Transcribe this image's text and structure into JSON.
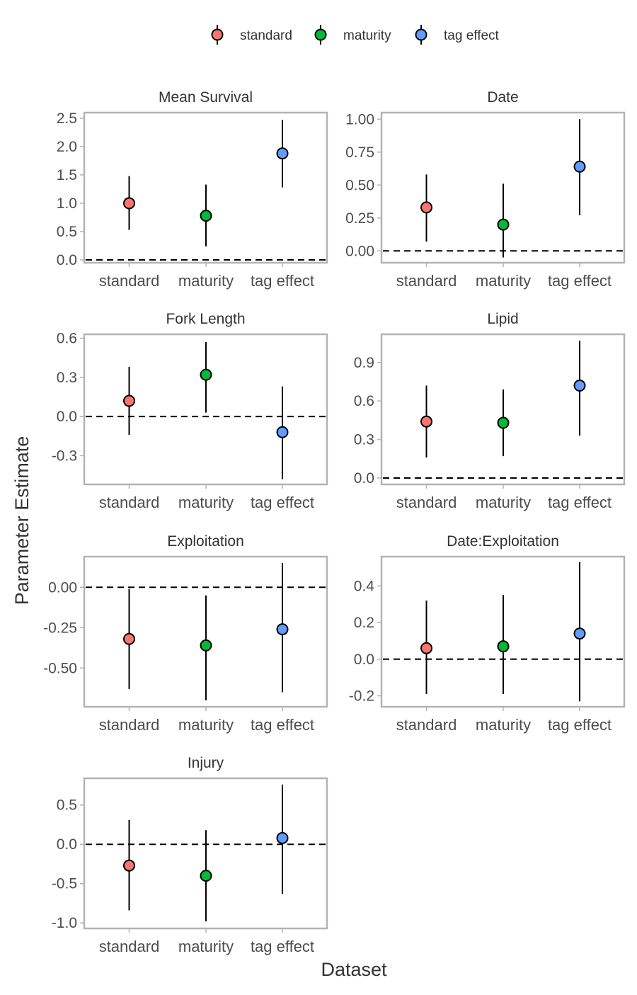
{
  "legend": {
    "entries": [
      {
        "label": "standard",
        "color": "#F8766D"
      },
      {
        "label": "maturity",
        "color": "#00BA38"
      },
      {
        "label": "tag effect",
        "color": "#619CFF"
      }
    ]
  },
  "x_axis_title": "Dataset",
  "y_axis_title": "Parameter Estimate",
  "chart_data": {
    "type": "scatter",
    "subtype": "point-range facets",
    "categories": [
      "standard",
      "maturity",
      "tag effect"
    ],
    "reference_line": 0,
    "panels": [
      {
        "title": "Mean Survival",
        "ylim": [
          -0.05,
          2.6
        ],
        "yticks": [
          0.0,
          0.5,
          1.0,
          1.5,
          2.0,
          2.5
        ],
        "ytick_labels": [
          "0.0",
          "0.5",
          "1.0",
          "1.5",
          "2.0",
          "2.5"
        ],
        "points": [
          {
            "category": "standard",
            "estimate": 1.0,
            "lower": 0.53,
            "upper": 1.48
          },
          {
            "category": "maturity",
            "estimate": 0.78,
            "lower": 0.24,
            "upper": 1.33
          },
          {
            "category": "tag effect",
            "estimate": 1.88,
            "lower": 1.28,
            "upper": 2.47
          }
        ]
      },
      {
        "title": "Date",
        "ylim": [
          -0.09,
          1.05
        ],
        "yticks": [
          0.0,
          0.25,
          0.5,
          0.75,
          1.0
        ],
        "ytick_labels": [
          "0.00",
          "0.25",
          "0.50",
          "0.75",
          "1.00"
        ],
        "points": [
          {
            "category": "standard",
            "estimate": 0.33,
            "lower": 0.07,
            "upper": 0.58
          },
          {
            "category": "maturity",
            "estimate": 0.2,
            "lower": -0.05,
            "upper": 0.51
          },
          {
            "category": "tag effect",
            "estimate": 0.64,
            "lower": 0.27,
            "upper": 1.0
          }
        ]
      },
      {
        "title": "Fork Length",
        "ylim": [
          -0.52,
          0.63
        ],
        "yticks": [
          -0.3,
          0.0,
          0.3,
          0.6
        ],
        "ytick_labels": [
          "-0.3",
          "0.0",
          "0.3",
          "0.6"
        ],
        "points": [
          {
            "category": "standard",
            "estimate": 0.12,
            "lower": -0.14,
            "upper": 0.38
          },
          {
            "category": "maturity",
            "estimate": 0.32,
            "lower": 0.03,
            "upper": 0.57
          },
          {
            "category": "tag effect",
            "estimate": -0.12,
            "lower": -0.48,
            "upper": 0.23
          }
        ]
      },
      {
        "title": "Lipid",
        "ylim": [
          -0.05,
          1.12
        ],
        "yticks": [
          0.0,
          0.3,
          0.6,
          0.9
        ],
        "ytick_labels": [
          "0.0",
          "0.3",
          "0.6",
          "0.9"
        ],
        "points": [
          {
            "category": "standard",
            "estimate": 0.44,
            "lower": 0.16,
            "upper": 0.72
          },
          {
            "category": "maturity",
            "estimate": 0.43,
            "lower": 0.17,
            "upper": 0.69
          },
          {
            "category": "tag effect",
            "estimate": 0.72,
            "lower": 0.33,
            "upper": 1.07
          }
        ]
      },
      {
        "title": "Exploitation",
        "ylim": [
          -0.74,
          0.19
        ],
        "yticks": [
          -0.5,
          -0.25,
          0.0
        ],
        "ytick_labels": [
          "-0.50",
          "-0.25",
          "0.00"
        ],
        "points": [
          {
            "category": "standard",
            "estimate": -0.32,
            "lower": -0.63,
            "upper": -0.01
          },
          {
            "category": "maturity",
            "estimate": -0.36,
            "lower": -0.7,
            "upper": -0.05
          },
          {
            "category": "tag effect",
            "estimate": -0.26,
            "lower": -0.65,
            "upper": 0.15
          }
        ]
      },
      {
        "title": "Date:Exploitation",
        "ylim": [
          -0.26,
          0.56
        ],
        "yticks": [
          -0.2,
          0.0,
          0.2,
          0.4
        ],
        "ytick_labels": [
          "-0.2",
          "0.0",
          "0.2",
          "0.4"
        ],
        "points": [
          {
            "category": "standard",
            "estimate": 0.06,
            "lower": -0.19,
            "upper": 0.32
          },
          {
            "category": "maturity",
            "estimate": 0.07,
            "lower": -0.19,
            "upper": 0.35
          },
          {
            "category": "tag effect",
            "estimate": 0.14,
            "lower": -0.23,
            "upper": 0.53
          }
        ]
      },
      {
        "title": "Injury",
        "ylim": [
          -1.07,
          0.84
        ],
        "yticks": [
          -1.0,
          -0.5,
          0.0,
          0.5
        ],
        "ytick_labels": [
          "-1.0",
          "-0.5",
          "0.0",
          "0.5"
        ],
        "points": [
          {
            "category": "standard",
            "estimate": -0.27,
            "lower": -0.84,
            "upper": 0.31
          },
          {
            "category": "maturity",
            "estimate": -0.4,
            "lower": -0.98,
            "upper": 0.18
          },
          {
            "category": "tag effect",
            "estimate": 0.08,
            "lower": -0.63,
            "upper": 0.76
          }
        ]
      }
    ]
  }
}
